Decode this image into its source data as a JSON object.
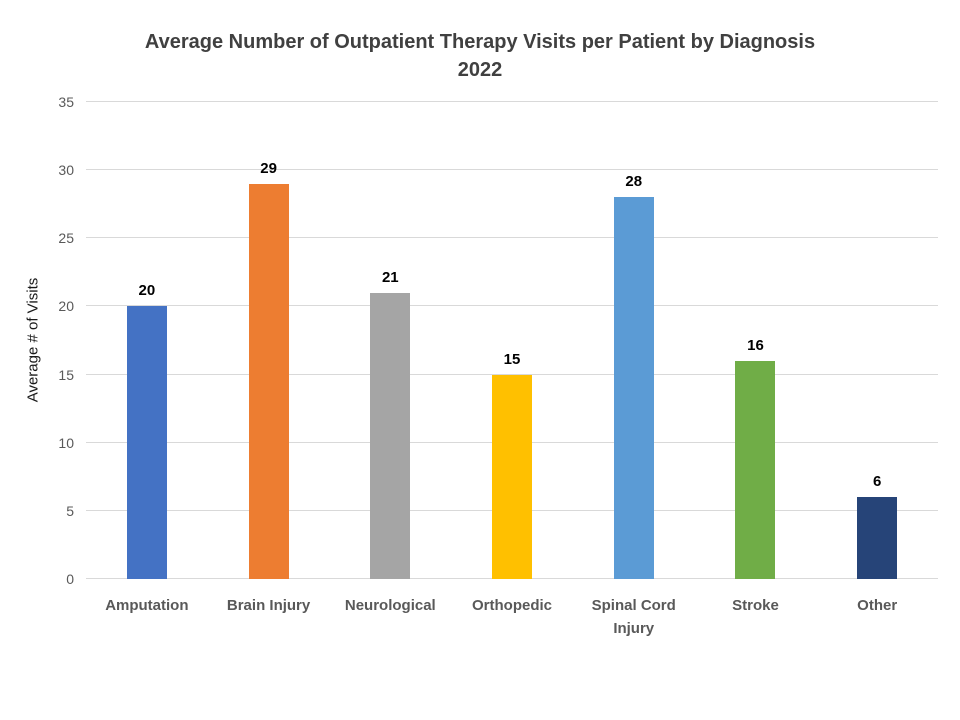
{
  "title": {
    "line1": "Average Number of Outpatient Therapy Visits per Patient by Diagnosis",
    "line2": "2022"
  },
  "chart_data": {
    "type": "bar",
    "title": "Average Number of Outpatient Therapy Visits per Patient by Diagnosis",
    "subtitle": "2022",
    "categories": [
      "Amputation",
      "Brain Injury",
      "Neurological",
      "Orthopedic",
      "Spinal Cord Injury",
      "Stroke",
      "Other"
    ],
    "values": [
      20,
      29,
      21,
      15,
      28,
      16,
      6
    ],
    "bar_colors": [
      "#4472C4",
      "#ED7D31",
      "#A5A5A5",
      "#FFC000",
      "#5B9BD5",
      "#70AD47",
      "#264478"
    ],
    "xlabel": "",
    "ylabel": "Average # of Visits",
    "ylim": [
      0,
      35
    ],
    "yticks": [
      0,
      5,
      10,
      15,
      20,
      25,
      30,
      35
    ],
    "grid": true,
    "legend": "none",
    "data_labels": true,
    "styles": {
      "title_color": "#404040",
      "tick_label_color": "#595959",
      "category_label_color": "#595959",
      "data_label_color": "#000000",
      "gridline_color": "#D9D9D9",
      "background_color": "#FFFFFF"
    }
  }
}
